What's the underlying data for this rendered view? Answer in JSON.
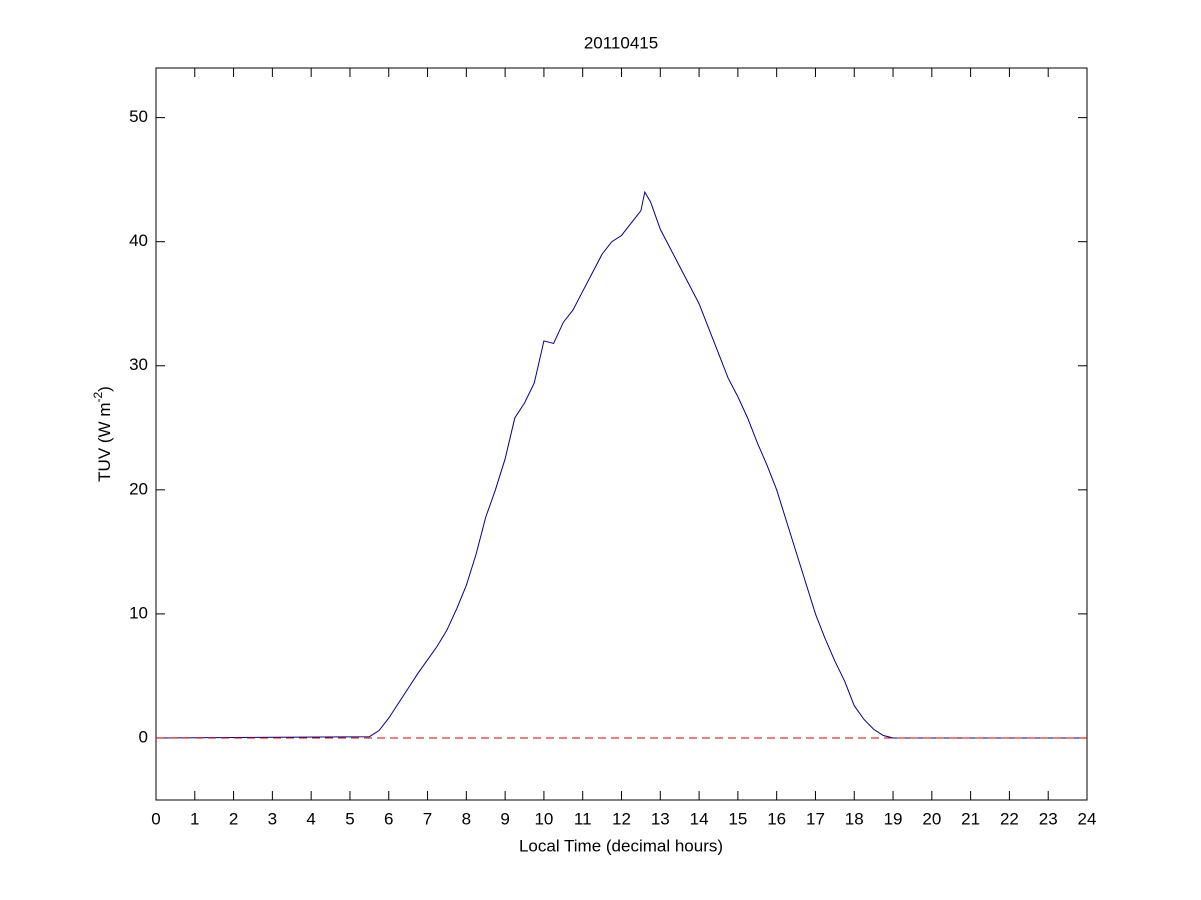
{
  "chart_data": {
    "type": "line",
    "title": "20110415",
    "xlabel": "Local Time (decimal hours)",
    "ylabel": {
      "text": "TUV (W m",
      "superscript": "-2",
      "suffix": ")"
    },
    "xlim": [
      0,
      24
    ],
    "xticks": [
      0,
      1,
      2,
      3,
      4,
      5,
      6,
      7,
      8,
      9,
      10,
      11,
      12,
      13,
      14,
      15,
      16,
      17,
      18,
      19,
      20,
      21,
      22,
      23,
      24
    ],
    "ylim": [
      -5,
      54
    ],
    "yticks": [
      0,
      10,
      20,
      30,
      40,
      50
    ],
    "grid": false,
    "series": [
      {
        "color": "#00008b",
        "linestyle": "solid",
        "x": [
          0,
          5.5,
          5.75,
          6,
          6.25,
          6.5,
          6.75,
          7,
          7.25,
          7.5,
          7.75,
          8,
          8.25,
          8.5,
          8.75,
          9,
          9.25,
          9.5,
          9.75,
          10,
          10.25,
          10.5,
          10.75,
          11,
          11.25,
          11.5,
          11.75,
          12,
          12.25,
          12.5,
          12.6,
          12.75,
          13,
          13.25,
          13.5,
          13.75,
          14,
          14.25,
          14.5,
          14.75,
          15,
          15.25,
          15.5,
          15.75,
          16,
          16.25,
          16.5,
          16.75,
          17,
          17.25,
          17.5,
          17.75,
          18,
          18.25,
          18.5,
          18.75,
          19,
          24
        ],
        "values": [
          0,
          0.1,
          0.6,
          1.6,
          2.8,
          4.0,
          5.2,
          6.3,
          7.4,
          8.7,
          10.4,
          12.3,
          14.8,
          17.8,
          20.0,
          22.5,
          25.8,
          27.0,
          28.6,
          32.0,
          31.8,
          33.5,
          34.5,
          36.0,
          37.5,
          39.0,
          40.0,
          40.5,
          41.5,
          42.5,
          44.0,
          43.2,
          41.0,
          39.5,
          38.0,
          36.5,
          35.0,
          33.0,
          31.0,
          29.0,
          27.5,
          25.8,
          23.8,
          22.0,
          20.0,
          17.5,
          15.0,
          12.5,
          10.0,
          8.0,
          6.2,
          4.6,
          2.6,
          1.5,
          0.7,
          0.2,
          0,
          0
        ]
      },
      {
        "color": "#d40000",
        "linestyle": "dashed",
        "x": [
          0,
          24
        ],
        "values": [
          0,
          0
        ]
      }
    ]
  }
}
